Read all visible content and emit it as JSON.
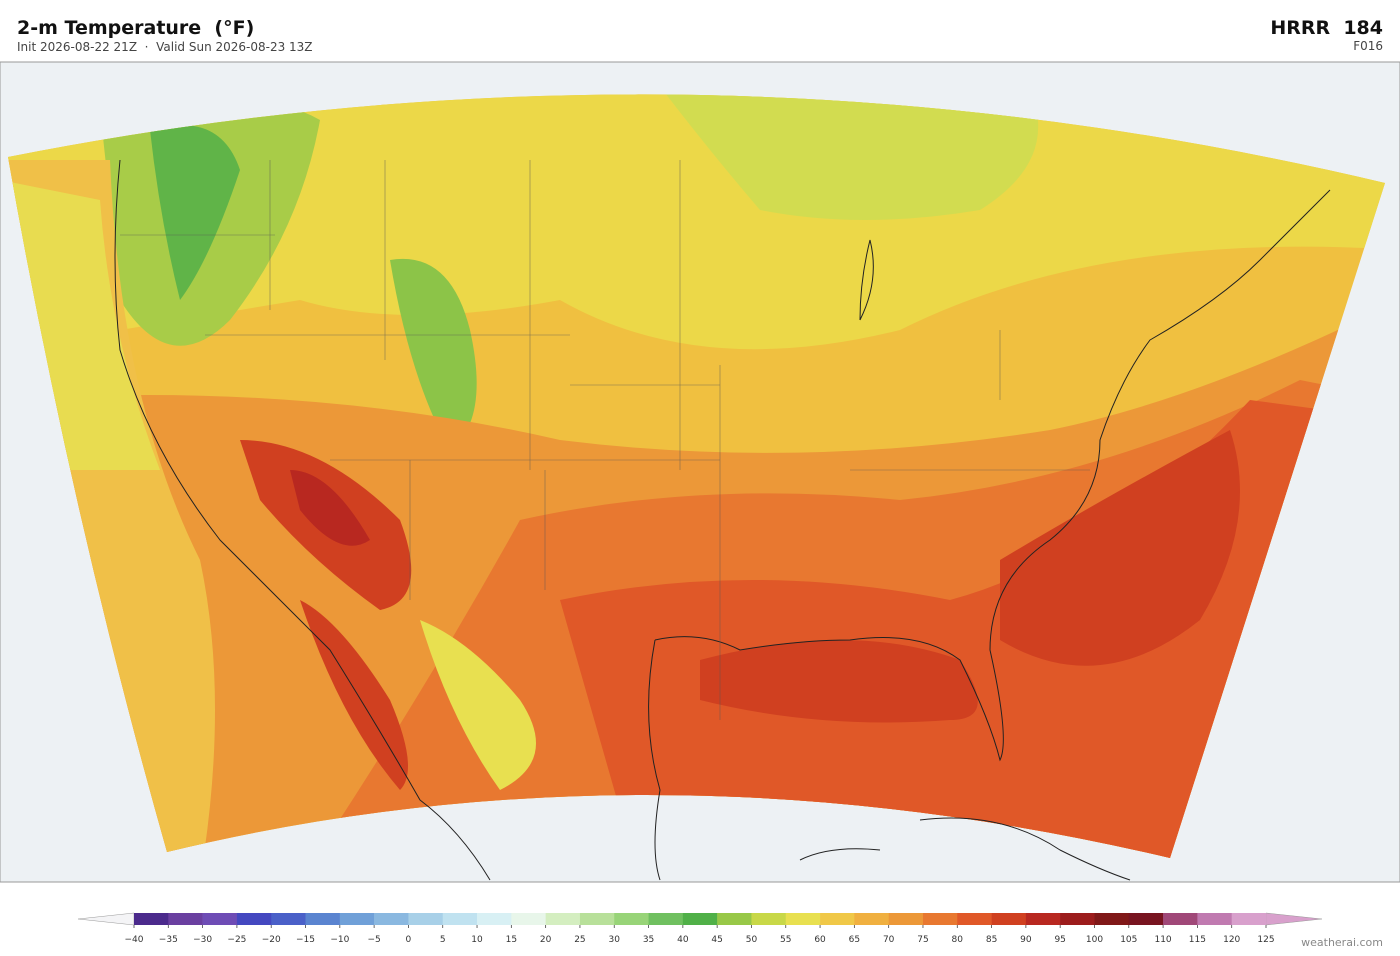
{
  "header": {
    "title": "2-m Temperature  (°F)",
    "subtitle": "Init 2026-08-22 21Z  ·  Valid Sun 2026-08-23 13Z",
    "model": "HRRR  184",
    "forecast_hour": "F016"
  },
  "colorbar": {
    "ticks": [
      {
        "value": -40,
        "label": "−40"
      },
      {
        "value": -35,
        "label": "−35"
      },
      {
        "value": -30,
        "label": "−30"
      },
      {
        "value": -25,
        "label": "−25"
      },
      {
        "value": -20,
        "label": "−20"
      },
      {
        "value": -15,
        "label": "−15"
      },
      {
        "value": -10,
        "label": "−10"
      },
      {
        "value": -5,
        "label": "−5"
      },
      0,
      5,
      10,
      15,
      20,
      25,
      30,
      35,
      40,
      45,
      50,
      55,
      60,
      65,
      70,
      75,
      80,
      85,
      90,
      95,
      100,
      105,
      110,
      115,
      120,
      125
    ],
    "colors": [
      "#4b2a8c",
      "#6a3fa0",
      "#6e4cb5",
      "#4448c0",
      "#4a60c8",
      "#5a84d0",
      "#70a0d8",
      "#8ab8e0",
      "#a8d0e8",
      "#c0e2f0",
      "#d8f0f4",
      "#e8f6ea",
      "#d4eec0",
      "#b8e09a",
      "#98d478",
      "#70c060",
      "#50b048",
      "#98c848",
      "#c8d848",
      "#e8e050",
      "#f0c848",
      "#f0b040",
      "#ec9838",
      "#e87830",
      "#e05828",
      "#d04020",
      "#b82820",
      "#9c1c1c",
      "#801818",
      "#781420",
      "#a04878",
      "#c07ab0",
      "#d8a0cc"
    ],
    "under_color": "#f4f4f6",
    "over_color": "#d8a0cc"
  },
  "watermark": "weatherai.com"
}
